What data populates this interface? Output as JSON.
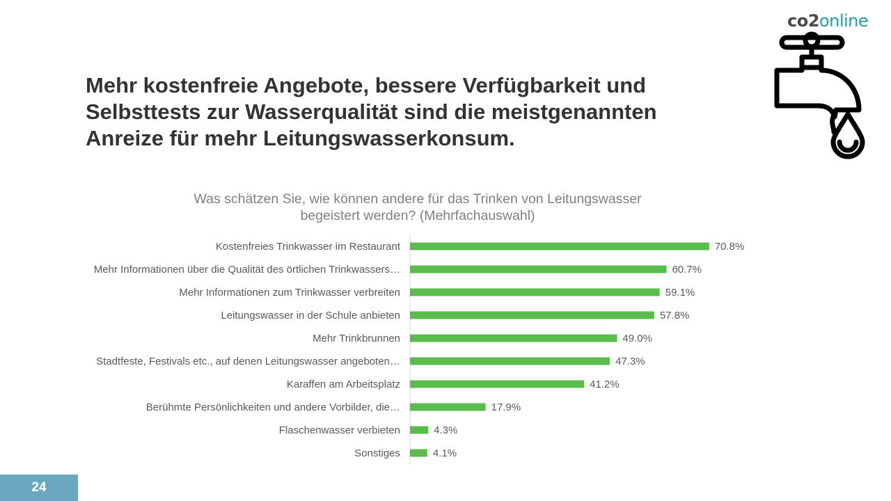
{
  "brand": {
    "part1": "co2",
    "part2": "online",
    "color_dark": "#4a4a4a",
    "color_accent": "#1e9fa7"
  },
  "headline": {
    "line1": "Mehr kostenfreie Angebote, bessere Verfügbarkeit und",
    "line2": "Selbsttests zur Wasserqualität sind die meistgenannten",
    "line3": "Anreize für mehr Leitungswasserkonsum."
  },
  "tap_icon": "water-tap-with-drop-icon",
  "page_number": "24",
  "colors": {
    "bar": "#5bbc4e",
    "page_badge": "#6aa8bf",
    "axis": "#d9d9d9"
  },
  "chart_data": {
    "type": "bar",
    "orientation": "horizontal",
    "title": "Was schätzen Sie, wie können andere für das Trinken von Leitungswasser begeistert werden? (Mehrfachauswahl)",
    "title_lines": [
      "Was schätzen Sie, wie können andere für das Trinken von Leitungswasser",
      "begeistert werden? (Mehrfachauswahl)"
    ],
    "categories": [
      "Kostenfreies Trinkwasser im Restaurant",
      "Mehr Informationen über die Qualität des örtlichen Trinkwassers…",
      "Mehr Informationen zum Trinkwasser verbreiten",
      "Leitungswasser in der Schule anbieten",
      "Mehr Trinkbrunnen",
      "Stadtfeste, Festivals etc., auf denen Leitungswasser angeboten…",
      "Karaffen am Arbeitsplatz",
      "Berühmte Persönlichkeiten und andere Vorbilder, die…",
      "Flaschenwasser verbieten",
      "Sonstiges"
    ],
    "values": [
      70.8,
      60.7,
      59.1,
      57.8,
      49.0,
      47.3,
      41.2,
      17.9,
      4.3,
      4.1
    ],
    "data_labels": [
      "70.8%",
      "60.7%",
      "59.1%",
      "57.8%",
      "49.0%",
      "47.3%",
      "41.2%",
      "17.9%",
      "4.3%",
      "4.1%"
    ],
    "unit": "%",
    "xlim": [
      0,
      100
    ],
    "grid": false,
    "legend": "none"
  }
}
